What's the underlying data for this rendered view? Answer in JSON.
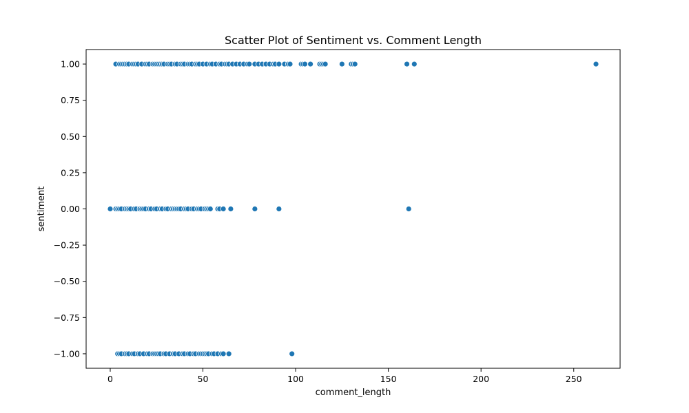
{
  "chart_data": {
    "type": "scatter",
    "title": "Scatter Plot of Sentiment vs. Comment Length",
    "xlabel": "comment_length",
    "ylabel": "sentiment",
    "xlim": [
      -13,
      275
    ],
    "ylim": [
      -1.1,
      1.1
    ],
    "xticks": [
      0,
      50,
      100,
      150,
      200,
      250
    ],
    "yticks": [
      -1.0,
      -0.75,
      -0.5,
      -0.25,
      0.0,
      0.25,
      0.5,
      0.75,
      1.0
    ],
    "xtick_labels": [
      "0",
      "50",
      "100",
      "150",
      "200",
      "250"
    ],
    "ytick_labels": [
      "−1.00",
      "−0.75",
      "−0.50",
      "−0.25",
      "0.00",
      "0.25",
      "0.50",
      "0.75",
      "1.00"
    ],
    "grid": false,
    "legend": false,
    "color": "#1f77b4",
    "series": [
      {
        "points": [
          [
            3,
            1
          ],
          [
            5,
            1
          ],
          [
            6,
            1
          ],
          [
            7,
            1
          ],
          [
            8,
            1
          ],
          [
            9,
            1
          ],
          [
            10,
            1
          ],
          [
            12,
            1
          ],
          [
            13,
            1
          ],
          [
            14,
            1
          ],
          [
            15,
            1
          ],
          [
            17,
            1
          ],
          [
            19,
            1
          ],
          [
            20,
            1
          ],
          [
            21,
            1
          ],
          [
            23,
            1
          ],
          [
            24,
            1
          ],
          [
            25,
            1
          ],
          [
            26,
            1
          ],
          [
            27,
            1
          ],
          [
            28,
            1
          ],
          [
            29,
            1
          ],
          [
            31,
            1
          ],
          [
            32,
            1
          ],
          [
            33,
            1
          ],
          [
            35,
            1
          ],
          [
            36,
            1
          ],
          [
            38,
            1
          ],
          [
            39,
            1
          ],
          [
            40,
            1
          ],
          [
            42,
            1
          ],
          [
            43,
            1
          ],
          [
            44,
            1
          ],
          [
            46,
            1
          ],
          [
            47,
            1
          ],
          [
            48,
            1
          ],
          [
            50,
            1
          ],
          [
            52,
            1
          ],
          [
            54,
            1
          ],
          [
            55,
            1
          ],
          [
            57,
            1
          ],
          [
            59,
            1
          ],
          [
            60,
            1
          ],
          [
            62,
            1
          ],
          [
            63,
            1
          ],
          [
            64,
            1
          ],
          [
            66,
            1
          ],
          [
            68,
            1
          ],
          [
            70,
            1
          ],
          [
            72,
            1
          ],
          [
            74,
            1
          ],
          [
            75,
            1
          ],
          [
            78,
            1
          ],
          [
            80,
            1
          ],
          [
            82,
            1
          ],
          [
            84,
            1
          ],
          [
            86,
            1
          ],
          [
            88,
            1
          ],
          [
            89,
            1
          ],
          [
            91,
            1
          ],
          [
            94,
            1
          ],
          [
            96,
            1
          ],
          [
            97,
            1
          ],
          [
            103,
            1
          ],
          [
            104,
            1
          ],
          [
            105,
            1
          ],
          [
            108,
            1
          ],
          [
            113,
            1
          ],
          [
            114,
            1
          ],
          [
            115,
            1
          ],
          [
            116,
            1
          ],
          [
            125,
            1
          ],
          [
            130,
            1
          ],
          [
            131,
            1
          ],
          [
            132,
            1
          ],
          [
            160,
            1
          ],
          [
            164,
            1
          ],
          [
            262,
            1
          ],
          [
            0,
            0
          ],
          [
            3,
            0
          ],
          [
            4,
            0
          ],
          [
            5,
            0
          ],
          [
            6,
            0
          ],
          [
            8,
            0
          ],
          [
            9,
            0
          ],
          [
            10,
            0
          ],
          [
            11,
            0
          ],
          [
            13,
            0
          ],
          [
            14,
            0
          ],
          [
            16,
            0
          ],
          [
            17,
            0
          ],
          [
            18,
            0
          ],
          [
            19,
            0
          ],
          [
            21,
            0
          ],
          [
            22,
            0
          ],
          [
            24,
            0
          ],
          [
            25,
            0
          ],
          [
            27,
            0
          ],
          [
            28,
            0
          ],
          [
            30,
            0
          ],
          [
            31,
            0
          ],
          [
            33,
            0
          ],
          [
            34,
            0
          ],
          [
            35,
            0
          ],
          [
            36,
            0
          ],
          [
            37,
            0
          ],
          [
            38,
            0
          ],
          [
            40,
            0
          ],
          [
            41,
            0
          ],
          [
            42,
            0
          ],
          [
            44,
            0
          ],
          [
            45,
            0
          ],
          [
            47,
            0
          ],
          [
            48,
            0
          ],
          [
            49,
            0
          ],
          [
            51,
            0
          ],
          [
            52,
            0
          ],
          [
            53,
            0
          ],
          [
            54,
            0
          ],
          [
            58,
            0
          ],
          [
            59,
            0
          ],
          [
            61,
            0
          ],
          [
            65,
            0
          ],
          [
            78,
            0
          ],
          [
            91,
            0
          ],
          [
            161,
            0
          ],
          [
            4,
            -1
          ],
          [
            5,
            -1
          ],
          [
            6,
            -1
          ],
          [
            8,
            -1
          ],
          [
            9,
            -1
          ],
          [
            10,
            -1
          ],
          [
            12,
            -1
          ],
          [
            13,
            -1
          ],
          [
            15,
            -1
          ],
          [
            16,
            -1
          ],
          [
            18,
            -1
          ],
          [
            20,
            -1
          ],
          [
            21,
            -1
          ],
          [
            23,
            -1
          ],
          [
            24,
            -1
          ],
          [
            25,
            -1
          ],
          [
            26,
            -1
          ],
          [
            27,
            -1
          ],
          [
            29,
            -1
          ],
          [
            30,
            -1
          ],
          [
            32,
            -1
          ],
          [
            34,
            -1
          ],
          [
            35,
            -1
          ],
          [
            37,
            -1
          ],
          [
            39,
            -1
          ],
          [
            40,
            -1
          ],
          [
            42,
            -1
          ],
          [
            43,
            -1
          ],
          [
            45,
            -1
          ],
          [
            46,
            -1
          ],
          [
            48,
            -1
          ],
          [
            49,
            -1
          ],
          [
            50,
            -1
          ],
          [
            51,
            -1
          ],
          [
            52,
            -1
          ],
          [
            53,
            -1
          ],
          [
            55,
            -1
          ],
          [
            56,
            -1
          ],
          [
            58,
            -1
          ],
          [
            60,
            -1
          ],
          [
            61,
            -1
          ],
          [
            64,
            -1
          ],
          [
            98,
            -1
          ]
        ]
      }
    ]
  }
}
